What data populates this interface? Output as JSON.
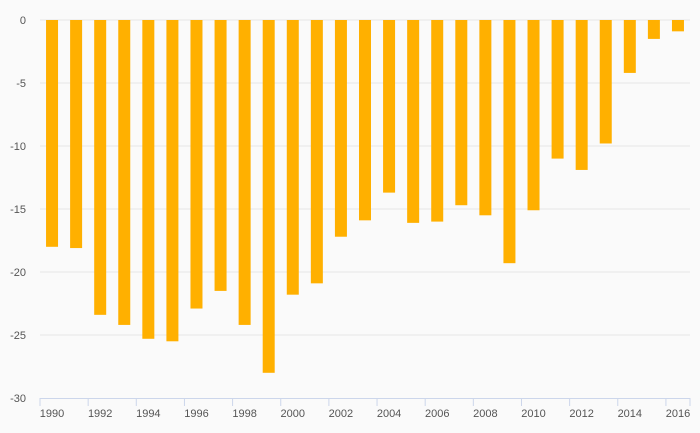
{
  "chart_data": {
    "type": "bar",
    "categories": [
      "1990",
      "1991",
      "1992",
      "1993",
      "1994",
      "1995",
      "1996",
      "1997",
      "1998",
      "1999",
      "2000",
      "2001",
      "2002",
      "2003",
      "2004",
      "2005",
      "2006",
      "2007",
      "2008",
      "2009",
      "2010",
      "2011",
      "2012",
      "2013",
      "2014",
      "2015",
      "2016"
    ],
    "values": [
      -18.0,
      -18.1,
      -23.4,
      -24.2,
      -25.3,
      -25.5,
      -22.9,
      -21.5,
      -24.2,
      -28.0,
      -21.8,
      -20.9,
      -17.2,
      -15.9,
      -13.7,
      -16.1,
      -16.0,
      -14.7,
      -15.5,
      -19.3,
      -15.1,
      -11.0,
      -11.9,
      -9.8,
      -4.2,
      -1.5,
      -0.9
    ],
    "x_tick_labels": [
      "1990",
      "1992",
      "1994",
      "1996",
      "1998",
      "2000",
      "2002",
      "2004",
      "2006",
      "2008",
      "2010",
      "2012",
      "2014",
      "2016"
    ],
    "y_ticks": [
      0,
      -5,
      -10,
      -15,
      -20,
      -25,
      -30
    ],
    "ylim": [
      -30,
      0
    ],
    "grid": true,
    "bar_color": "#ffb000",
    "title": "",
    "xlabel": "",
    "ylabel": ""
  }
}
